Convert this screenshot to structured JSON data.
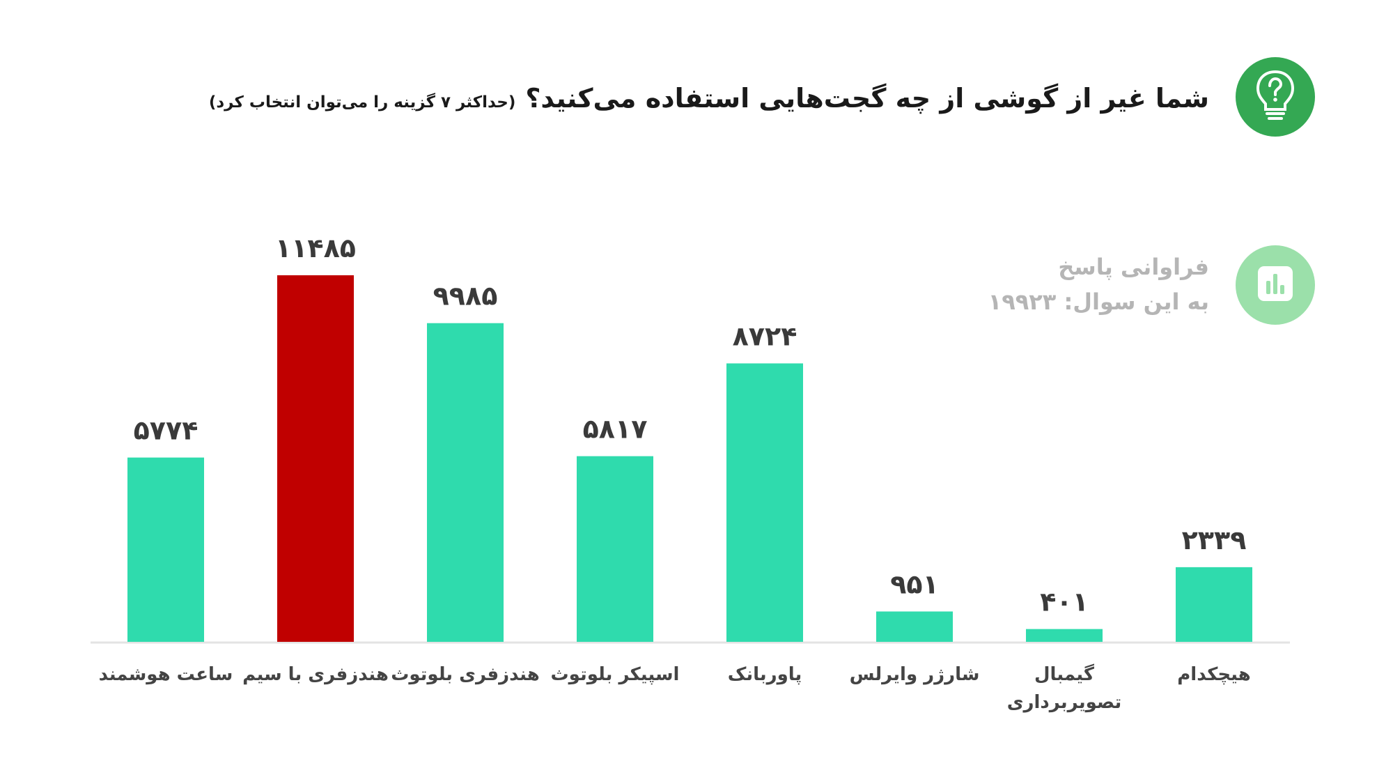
{
  "question": {
    "title": "شما غیر از گوشی از چه گجت‌هایی استفاده می‌کنید؟",
    "note": "(حداکثر ۷ گزینه را می‌توان انتخاب کرد)"
  },
  "frequency": {
    "line1": "فراوانی پاسخ",
    "line2": "به این سوال:",
    "count": "۱۹۹۲۳"
  },
  "colors": {
    "bar": "#2fdbad",
    "highlight": "#c00000",
    "question_badge": "#34a853",
    "frequency_badge": "#9be0aa"
  },
  "icons": {
    "question": "lightbulb-question-icon",
    "frequency": "bar-chart-icon"
  },
  "chart_data": {
    "type": "bar",
    "categories": [
      "ساعت هوشمند",
      "هندزفری با سیم",
      "هندزفری بلوتوث",
      "اسپیکر بلوتوث",
      "پاوربانک",
      "شارژر وایرلس",
      "گیمبال تصویربرداری",
      "هیچکدام"
    ],
    "values": [
      5774,
      11485,
      9985,
      5817,
      8724,
      951,
      401,
      2339
    ],
    "value_labels": [
      "۵۷۷۴",
      "۱۱۴۸۵",
      "۹۹۸۵",
      "۵۸۱۷",
      "۸۷۲۴",
      "۹۵۱",
      "۴۰۱",
      "۲۳۳۹"
    ],
    "highlight_index": 1,
    "ylim": [
      0,
      11485
    ],
    "grid": false,
    "legend": "none"
  }
}
